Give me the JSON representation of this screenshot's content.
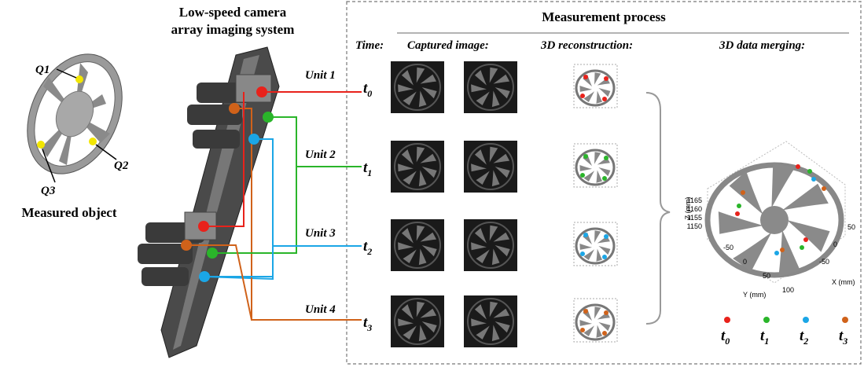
{
  "imaging_system": {
    "title_lines": [
      "Low-speed camera",
      "array imaging system"
    ],
    "units": [
      "Unit 1",
      "Unit 2",
      "Unit 3",
      "Unit 4"
    ]
  },
  "object": {
    "label": "Measured object",
    "points": [
      "Q1",
      "Q2",
      "Q3"
    ]
  },
  "process": {
    "title": "Measurement process",
    "headers": [
      "Time:",
      "Captured image:",
      "3D reconstruction:",
      "3D data merging:"
    ],
    "times": [
      {
        "symbol": "t",
        "index": "0"
      },
      {
        "symbol": "t",
        "index": "1"
      },
      {
        "symbol": "t",
        "index": "2"
      },
      {
        "symbol": "t",
        "index": "3"
      }
    ]
  },
  "merge_plot": {
    "z_label": "Z (mm)",
    "z_ticks": [
      "1165",
      "1160",
      "1155",
      "1150"
    ],
    "y_label": "Y (mm)",
    "y_ticks": [
      "-50",
      "0",
      "50",
      "100"
    ],
    "x_label": "X (mm)",
    "x_ticks": [
      "50",
      "0",
      "-50"
    ]
  },
  "legend": [
    {
      "symbol": "t",
      "index": "0"
    },
    {
      "symbol": "t",
      "index": "1"
    },
    {
      "symbol": "t",
      "index": "2"
    },
    {
      "symbol": "t",
      "index": "3"
    }
  ]
}
